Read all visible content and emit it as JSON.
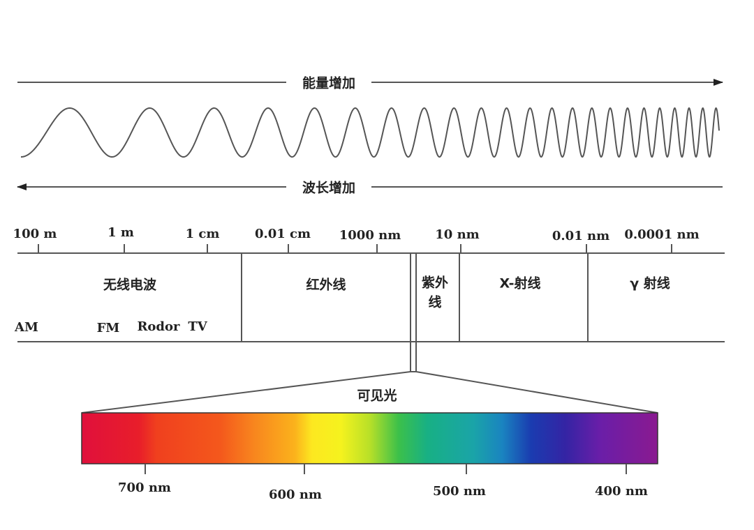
{
  "arrows": {
    "energy": "能量增加",
    "wavelength": "波长增加"
  },
  "scale": [
    "100 m",
    "1 m",
    "1 cm",
    "0.01 cm",
    "1000 nm",
    "10 nm",
    "0.01 nm",
    "0.0001 nm"
  ],
  "bands": {
    "radio": "无线电波",
    "infrared": "红外线",
    "uv": [
      "紫外",
      "线"
    ],
    "xray": "X-射线",
    "gamma": "γ 射线"
  },
  "radio_sub": [
    "AM",
    "FM",
    "Rodor",
    "TV"
  ],
  "visible": {
    "label": "可见光",
    "ticks": [
      "700 nm",
      "600 nm",
      "500 nm",
      "400 nm"
    ]
  }
}
